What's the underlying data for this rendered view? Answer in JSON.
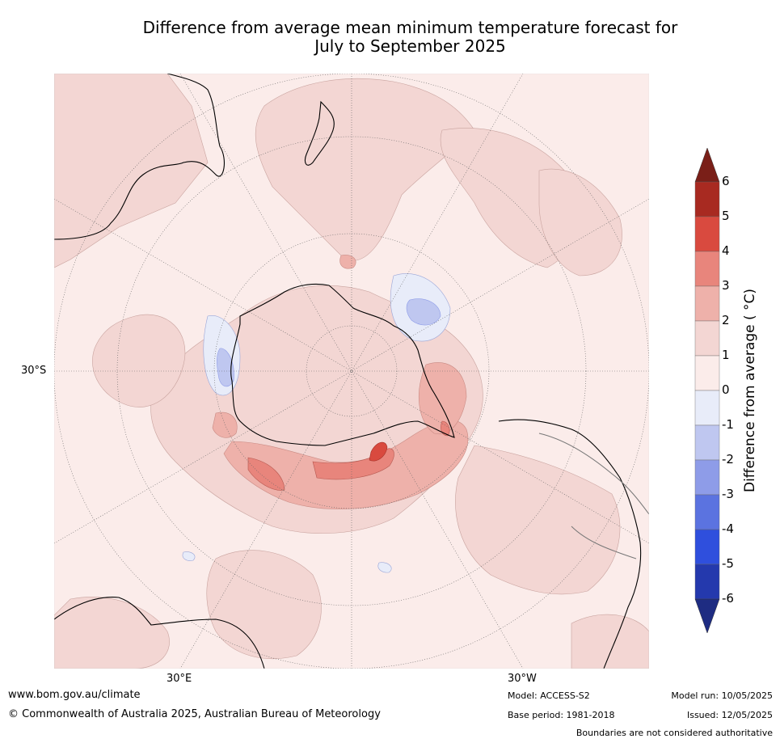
{
  "title": {
    "line1": "Difference from average mean minimum temperature forecast for",
    "line2": "July to September 2025"
  },
  "map": {
    "labels": {
      "lat_30s": "30°S",
      "lon_30e": "30°E",
      "lon_30w": "30°W"
    }
  },
  "colorbar": {
    "title": "Difference from average ( °C)",
    "ticks": [
      "6",
      "5",
      "4",
      "3",
      "2",
      "1",
      "0",
      "-1",
      "-2",
      "-3",
      "-4",
      "-5",
      "-6"
    ],
    "colors": {
      "over": "#7a1f18",
      "c5_6": "#a82a21",
      "c4_5": "#d94a3f",
      "c3_4": "#e8857c",
      "c2_3": "#eeb1aa",
      "c1_2": "#f3d6d3",
      "c0_1": "#fbecea",
      "cm1_0": "#e8ecf9",
      "cm2_m1": "#bfc7f0",
      "cm3_m2": "#8e9ce8",
      "cm4_m3": "#5b73e0",
      "cm5_m4": "#2f4fdd",
      "cm6_m5": "#2439ad",
      "under": "#1e2c82"
    }
  },
  "footer": {
    "url": "www.bom.gov.au/climate",
    "copyright": "© Commonwealth of Australia 2025, Australian Bureau of Meteorology",
    "model": "Model: ACCESS-S2",
    "base_period": "Base period: 1981-2018",
    "model_run": "Model run: 10/05/2025",
    "issued": "Issued: 12/05/2025",
    "disclaimer": "Boundaries are not considered authoritative"
  }
}
